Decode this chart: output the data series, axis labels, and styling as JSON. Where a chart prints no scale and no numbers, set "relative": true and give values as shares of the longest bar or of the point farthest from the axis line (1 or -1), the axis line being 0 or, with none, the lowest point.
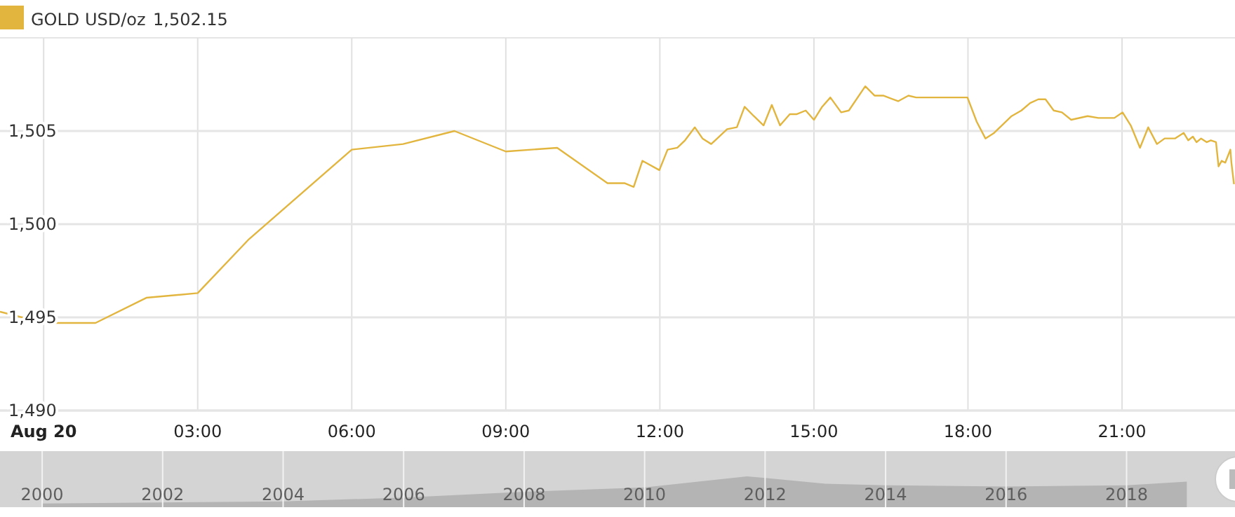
{
  "chart_data": [
    {
      "type": "line",
      "x": [
        -0.85,
        0,
        1.01,
        2.0,
        3.0,
        4.0,
        6.0,
        7.0,
        8.0,
        9.0,
        10.0,
        10.98,
        11.31,
        11.49,
        11.66,
        11.99,
        12.15,
        12.34,
        12.49,
        12.68,
        12.83,
        13.0,
        13.31,
        13.5,
        13.65,
        13.83,
        14.02,
        14.18,
        14.34,
        14.53,
        14.66,
        14.84,
        15.0,
        15.16,
        15.32,
        15.53,
        15.68,
        16.0,
        16.18,
        16.35,
        16.64,
        16.84,
        16.99,
        17.99,
        18.17,
        18.34,
        18.51,
        18.85,
        19.04,
        19.21,
        19.37,
        19.51,
        19.67,
        19.83,
        20.01,
        20.33,
        20.54,
        20.85,
        21.01,
        21.17,
        21.35,
        21.51,
        21.68,
        21.83,
        22.03,
        22.2,
        22.29,
        22.38,
        22.45,
        22.54,
        22.65,
        22.73,
        22.83,
        22.88,
        22.94,
        23.01,
        23.11,
        23.13,
        23.18
      ],
      "series": [
        {
          "name": "GOLD USD/oz",
          "color": "#e2b53e",
          "values": [
            1495.3,
            1494.7,
            1494.7,
            1496.05,
            1496.3,
            1499.2,
            1504.0,
            1504.3,
            1505.0,
            1503.9,
            1504.1,
            1502.2,
            1502.2,
            1502.0,
            1503.4,
            1502.9,
            1504.0,
            1504.1,
            1504.5,
            1505.2,
            1504.6,
            1504.3,
            1505.1,
            1505.2,
            1506.3,
            1505.8,
            1505.3,
            1506.4,
            1505.3,
            1505.9,
            1505.9,
            1506.1,
            1505.6,
            1506.3,
            1506.8,
            1506.0,
            1506.1,
            1507.4,
            1506.9,
            1506.9,
            1506.6,
            1506.9,
            1506.8,
            1506.8,
            1505.5,
            1504.6,
            1504.9,
            1505.8,
            1506.1,
            1506.5,
            1506.7,
            1506.7,
            1506.1,
            1506.0,
            1505.6,
            1505.8,
            1505.7,
            1505.7,
            1506.0,
            1505.3,
            1504.1,
            1505.2,
            1504.3,
            1504.6,
            1504.6,
            1504.9,
            1504.5,
            1504.7,
            1504.4,
            1504.6,
            1504.4,
            1504.5,
            1504.4,
            1503.1,
            1503.4,
            1503.3,
            1504.0,
            1503.3,
            1502.15
          ]
        }
      ],
      "annotations": [
        "1,502.15"
      ],
      "xlim": [
        -0.85,
        23.2
      ],
      "ylim": [
        1490,
        1510
      ],
      "xticks": [
        {
          "value": 0,
          "label": "Aug 20"
        },
        {
          "value": 3,
          "label": "03:00"
        },
        {
          "value": 6,
          "label": "06:00"
        },
        {
          "value": 9,
          "label": "09:00"
        },
        {
          "value": 12,
          "label": "12:00"
        },
        {
          "value": 15,
          "label": "15:00"
        },
        {
          "value": 18,
          "label": "18:00"
        },
        {
          "value": 21,
          "label": "21:00"
        }
      ],
      "yticks": [
        {
          "value": 1490,
          "label": "1,490"
        },
        {
          "value": 1495,
          "label": "1,495"
        },
        {
          "value": 1500,
          "label": "1,500"
        },
        {
          "value": 1505,
          "label": "1,505"
        }
      ],
      "grid": true,
      "legend": "top left"
    },
    {
      "type": "area",
      "relative": true,
      "x": [
        2000,
        2004,
        2006,
        2008,
        2010,
        2011.7,
        2012,
        2013,
        2014,
        2016,
        2018,
        2019
      ],
      "series": [
        {
          "color": "#b4b4b4",
          "values": [
            0.12,
            0.19,
            0.31,
            0.5,
            0.64,
            1,
            0.95,
            0.76,
            0.71,
            0.67,
            0.71,
            0.83
          ]
        }
      ],
      "xlim": [
        1999.3,
        2019.8
      ],
      "xticks": [
        2000,
        2002,
        2004,
        2006,
        2008,
        2010,
        2012,
        2014,
        2016,
        2018
      ],
      "grid": "x"
    }
  ]
}
